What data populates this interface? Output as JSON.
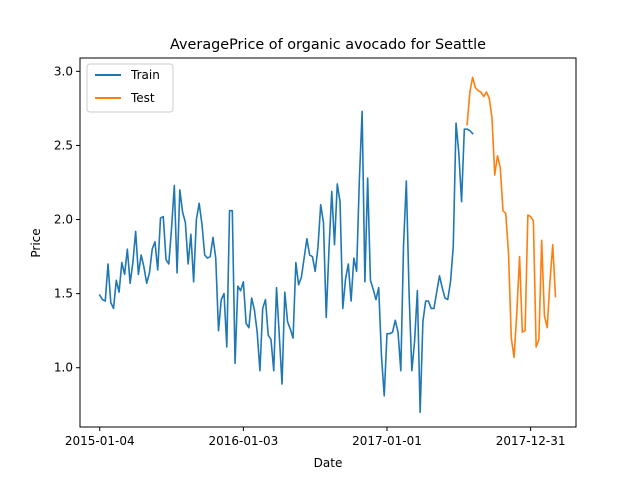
{
  "chart_data": {
    "type": "line",
    "title": "AveragePrice of organic avocado for Seattle",
    "xlabel": "Date",
    "ylabel": "Price",
    "x_tick_labels": [
      "2015-01-04",
      "2016-01-03",
      "2017-01-01",
      "2017-12-31"
    ],
    "x_ticks": [
      "2015-01-04",
      "2016-01-03",
      "2017-01-01",
      "2017-12-31"
    ],
    "y_ticks": [
      1.0,
      1.5,
      2.0,
      2.5,
      3.0
    ],
    "y_tick_labels": [
      "1.0",
      "1.5",
      "2.0",
      "2.5",
      "3.0"
    ],
    "xlim": [
      "2014-11-15",
      "2018-04-25"
    ],
    "ylim": [
      0.6,
      3.09
    ],
    "grid": false,
    "legend_position": "top-left",
    "series": [
      {
        "name": "Train",
        "color": "#1f77b4",
        "start": "2015-01-04",
        "step_days": 7,
        "values": [
          1.49,
          1.46,
          1.45,
          1.7,
          1.44,
          1.4,
          1.59,
          1.51,
          1.71,
          1.63,
          1.8,
          1.57,
          1.71,
          1.92,
          1.63,
          1.76,
          1.68,
          1.57,
          1.64,
          1.8,
          1.85,
          1.66,
          2.01,
          2.02,
          1.73,
          1.7,
          1.94,
          2.23,
          1.64,
          2.2,
          2.05,
          1.98,
          1.7,
          1.9,
          1.58,
          2.0,
          2.11,
          1.97,
          1.76,
          1.74,
          1.75,
          1.88,
          1.74,
          1.25,
          1.46,
          1.5,
          1.14,
          2.06,
          2.06,
          1.03,
          1.55,
          1.52,
          1.58,
          1.3,
          1.27,
          1.47,
          1.39,
          1.24,
          0.98,
          1.4,
          1.46,
          1.22,
          1.19,
          0.98,
          1.54,
          1.22,
          0.89,
          1.51,
          1.31,
          1.26,
          1.2,
          1.71,
          1.56,
          1.61,
          1.74,
          1.87,
          1.76,
          1.75,
          1.65,
          1.81,
          2.1,
          1.98,
          1.34,
          1.8,
          2.19,
          1.83,
          2.24,
          2.12,
          1.4,
          1.6,
          1.7,
          1.45,
          1.74,
          1.65,
          2.27,
          2.73,
          1.58,
          2.28,
          1.59,
          1.53,
          1.46,
          1.54,
          1.08,
          0.81,
          1.23,
          1.23,
          1.24,
          1.32,
          1.24,
          0.98,
          1.83,
          2.26,
          1.5,
          0.98,
          1.18,
          1.52,
          0.7,
          1.31,
          1.45,
          1.45,
          1.4,
          1.4,
          1.51,
          1.62,
          1.54,
          1.47,
          1.46,
          1.58,
          1.82,
          2.65,
          2.45,
          2.12,
          2.61,
          2.61,
          2.6,
          2.58
        ]
      },
      {
        "name": "Test",
        "color": "#ff7f0e",
        "start": "2017-07-23",
        "step_days": 7,
        "values": [
          2.64,
          2.86,
          2.96,
          2.89,
          2.87,
          2.86,
          2.83,
          2.86,
          2.82,
          2.69,
          2.3,
          2.43,
          2.35,
          2.06,
          2.04,
          1.77,
          1.2,
          1.07,
          1.37,
          1.75,
          1.24,
          1.25,
          2.03,
          2.02,
          1.99,
          1.14,
          1.19,
          1.86,
          1.35,
          1.27,
          1.58,
          1.83,
          1.48
        ]
      }
    ]
  }
}
